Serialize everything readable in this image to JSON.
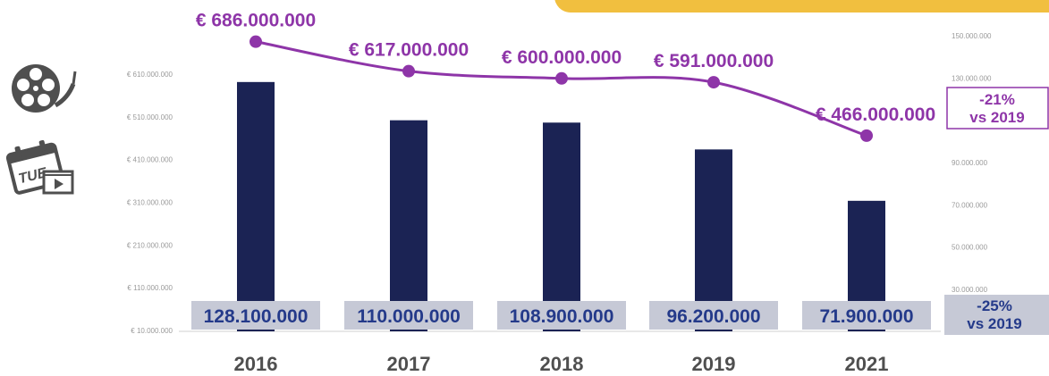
{
  "chart_data": {
    "type": "bar",
    "categories": [
      "2016",
      "2017",
      "2018",
      "2019",
      "2021"
    ],
    "series": [
      {
        "type": "bar",
        "axis": "right",
        "values": [
          128100000,
          110000000,
          108900000,
          96200000,
          71900000
        ],
        "labels": [
          "128.100.000",
          "110.000.000",
          "108.900.000",
          "96.200.000",
          "71.900.000"
        ]
      },
      {
        "type": "line",
        "axis": "left",
        "values": [
          686000000,
          617000000,
          600000000,
          591000000,
          466000000
        ],
        "labels": [
          "€ 686.000.000",
          "€ 617.000.000",
          "€ 600.000.000",
          "€ 591.000.000",
          "€ 466.000.000"
        ]
      }
    ],
    "left_axis": {
      "ticks": [
        10000000,
        110000000,
        210000000,
        310000000,
        410000000,
        510000000,
        610000000
      ],
      "tick_labels": [
        "€ 10.000.000",
        "€ 110.000.000",
        "€ 210.000.000",
        "€ 310.000.000",
        "€ 410.000.000",
        "€ 510.000.000",
        "€ 610.000.000"
      ]
    },
    "right_axis": {
      "ticks": [
        30000000,
        50000000,
        70000000,
        90000000,
        130000000,
        150000000
      ],
      "tick_labels": [
        "30.000.000",
        "50.000.000",
        "70.000.000",
        "90.000.000",
        "130.000.000",
        "150.000.000"
      ]
    },
    "annotations": [
      {
        "series": "line",
        "text_lines": [
          "-21%",
          "vs 2019"
        ]
      },
      {
        "series": "bar",
        "text_lines": [
          "-25%",
          "vs 2019"
        ]
      }
    ],
    "colors": {
      "bar": "#1b2354",
      "line": "#8e35a8",
      "bar_label_text": "#243a8a",
      "bar_label_box": "#c6c9d6",
      "axis_text": "#9a9a9a",
      "category_text": "#4f4f4f",
      "banner": "#f1bf3f"
    },
    "grid": false
  },
  "icons": {
    "film_reel": "film-reel-icon",
    "calendar": "calendar-tuesday-icon",
    "calendar_text": "TUE"
  }
}
